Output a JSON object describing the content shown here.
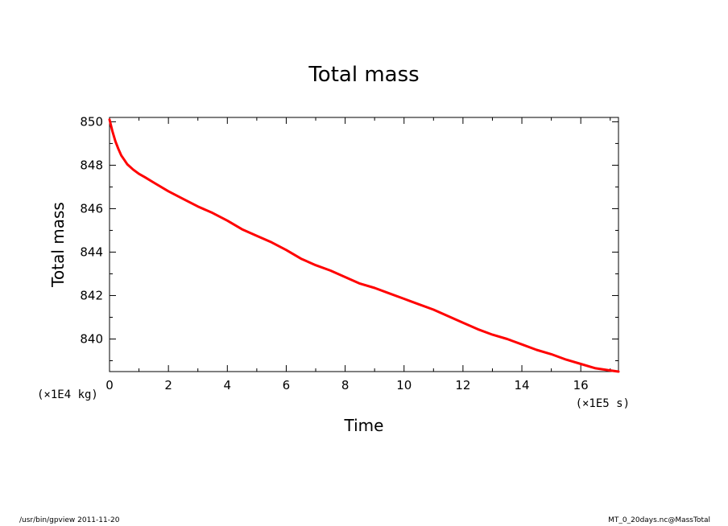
{
  "chart_data": {
    "type": "line",
    "title": "Total mass",
    "xlabel": "Time",
    "ylabel": "Total mass",
    "xunit": "(×1E5 s)",
    "yunit": "(×1E4 kg)",
    "xlim": [
      0,
      17.28
    ],
    "ylim": [
      838.5,
      850.2
    ],
    "xticks": [
      0,
      2,
      4,
      6,
      8,
      10,
      12,
      14,
      16
    ],
    "yticks": [
      840,
      842,
      844,
      846,
      848,
      850
    ],
    "grid": false,
    "series": [
      {
        "color": "#ff0000",
        "x": [
          0,
          0.1,
          0.2,
          0.3,
          0.4,
          0.5,
          0.6,
          0.8,
          1.0,
          1.2,
          1.5,
          2.0,
          2.5,
          3.0,
          3.5,
          4.0,
          4.5,
          5.0,
          5.5,
          6.0,
          6.5,
          7.0,
          7.5,
          8.0,
          8.5,
          9.0,
          9.5,
          10.0,
          10.5,
          11.0,
          11.5,
          12.0,
          12.5,
          13.0,
          13.5,
          14.0,
          14.5,
          15.0,
          15.5,
          16.0,
          16.5,
          17.0,
          17.28
        ],
        "y": [
          850.1,
          849.55,
          849.1,
          848.75,
          848.45,
          848.25,
          848.05,
          847.8,
          847.6,
          847.45,
          847.2,
          846.8,
          846.45,
          846.1,
          845.8,
          845.45,
          845.05,
          844.75,
          844.45,
          844.1,
          843.7,
          843.4,
          843.15,
          842.85,
          842.55,
          842.35,
          842.1,
          841.85,
          841.6,
          841.35,
          841.05,
          840.75,
          840.45,
          840.2,
          840.0,
          839.75,
          839.5,
          839.3,
          839.05,
          838.85,
          838.65,
          838.55,
          838.5
        ]
      }
    ]
  },
  "footer": {
    "left": "/usr/bin/gpview   2011-11-20",
    "right": "MT_0_20days.nc@MassTotal"
  }
}
